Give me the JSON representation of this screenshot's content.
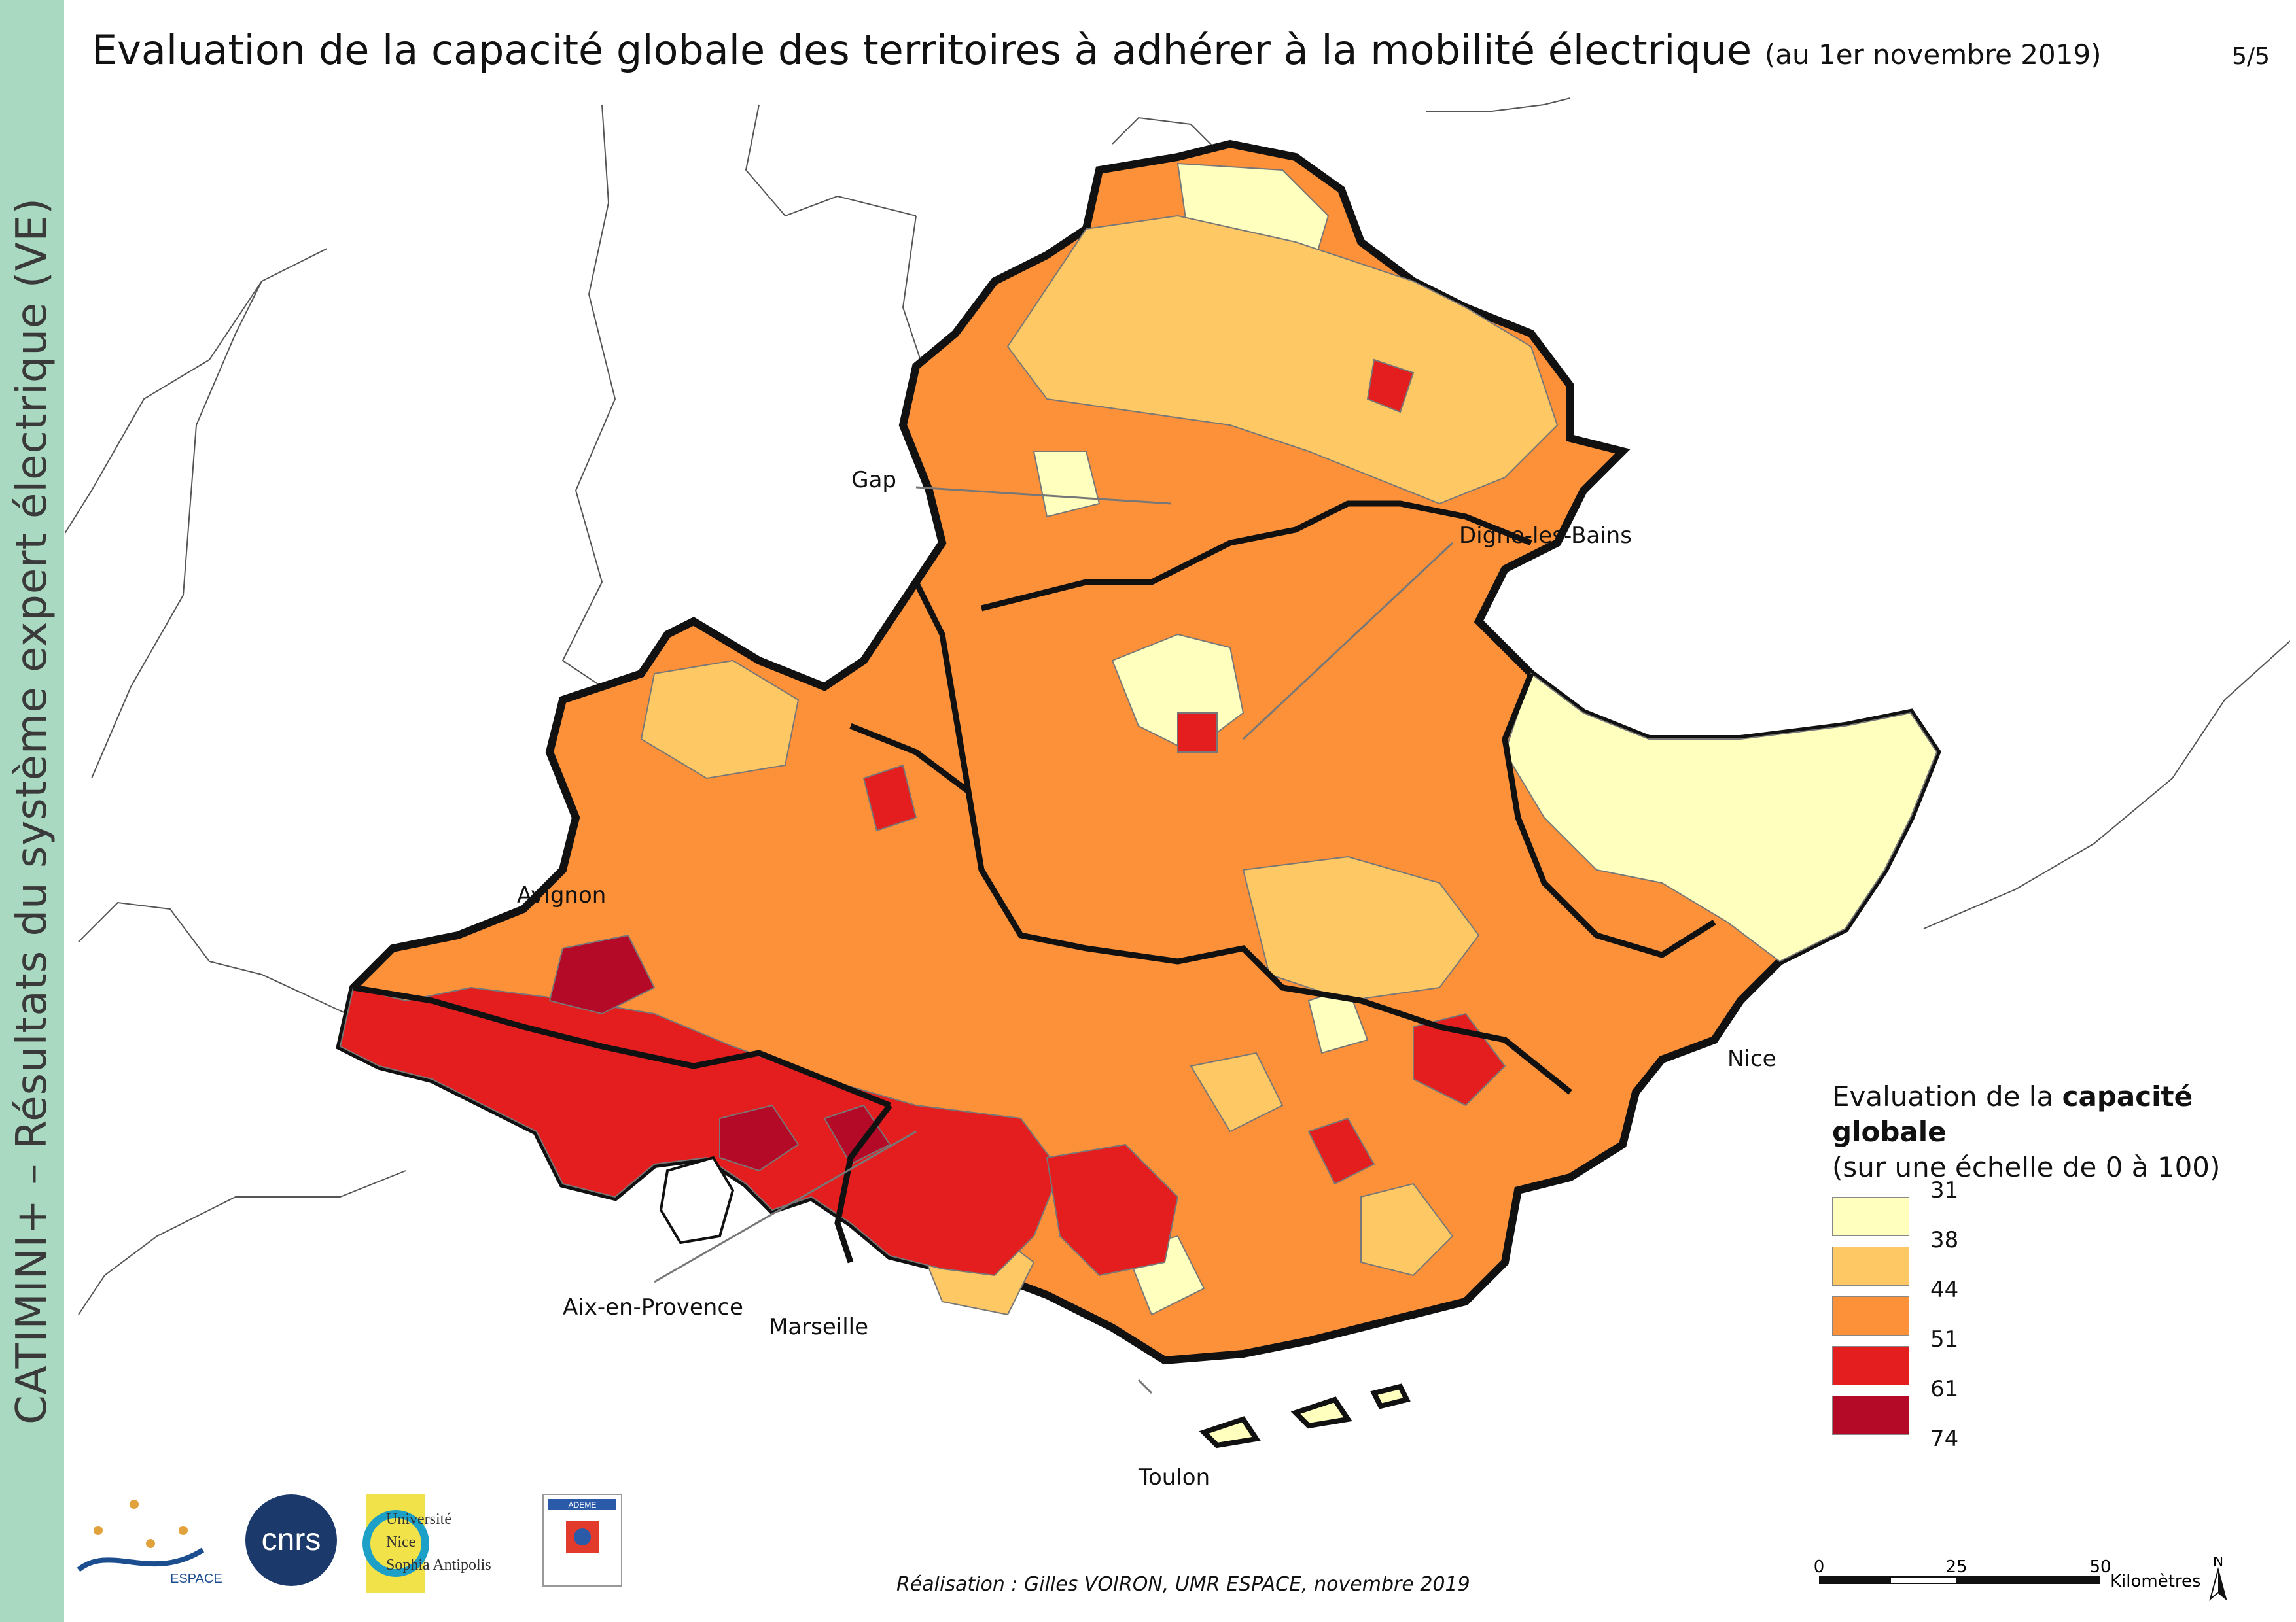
{
  "title": {
    "main": "Evaluation de la capacité globale des territoires à adhérer à la mobilité électrique",
    "date": "(au 1er novembre 2019)"
  },
  "page_number": "5/5",
  "sidebar": {
    "text": "CATIMINI+ – Résultats du système expert électrique (VE)"
  },
  "cities": [
    "Gap",
    "Digne-les-Bains",
    "Avignon",
    "Nice",
    "Aix-en-Provence",
    "Marseille",
    "Toulon"
  ],
  "legend": {
    "title_prefix": "Evaluation de la ",
    "title_bold": "capacité globale",
    "subtitle": "(sur une échelle de 0 à 100)",
    "classes": [
      {
        "color": "#ffffbe"
      },
      {
        "color": "#fec965"
      },
      {
        "color": "#fd9139"
      },
      {
        "color": "#e41e1e"
      },
      {
        "color": "#b50a27"
      }
    ],
    "breaks": [
      "31",
      "38",
      "44",
      "51",
      "61",
      "74"
    ]
  },
  "scale": {
    "ticks": [
      "0",
      "25",
      "50"
    ],
    "unit": "Kilomètres"
  },
  "north": "N",
  "credit": "Réalisation : Gilles VOIRON, UMR ESPACE, novembre 2019",
  "logos": {
    "espace": "ESPACE",
    "cnrs": "cnrs",
    "university": [
      "Université",
      "Nice",
      "Sophia Antipolis"
    ],
    "ademe": "ADEME"
  }
}
